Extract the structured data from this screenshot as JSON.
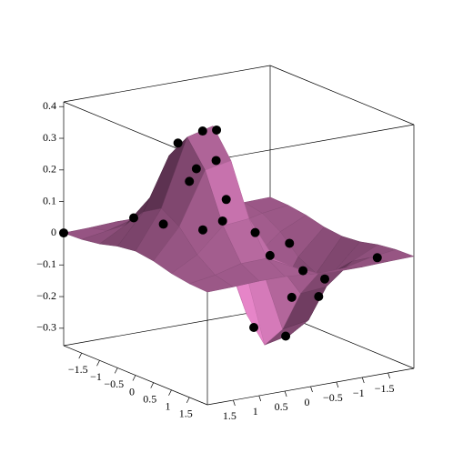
{
  "chart_data": {
    "type": "surface3d",
    "x": [
      -2,
      -1.5,
      -1,
      -0.5,
      0,
      0.5,
      1,
      1.5,
      2
    ],
    "y": [
      -2,
      -1.5,
      -1,
      -0.5,
      0,
      0.5,
      1,
      1.5,
      2
    ],
    "z": [
      [
        -0.001,
        -0.003,
        -0.006,
        -0.006,
        0,
        0.007,
        0.007,
        0.003,
        0.001
      ],
      [
        -0.003,
        -0.014,
        -0.033,
        -0.035,
        0,
        0.041,
        0.039,
        0.017,
        0.004
      ],
      [
        -0.011,
        -0.049,
        -0.115,
        -0.122,
        0,
        0.143,
        0.135,
        0.058,
        0.013
      ],
      [
        -0.025,
        -0.105,
        -0.244,
        -0.258,
        0,
        0.303,
        0.287,
        0.123,
        0.029
      ],
      [
        -0.031,
        -0.134,
        -0.313,
        -0.331,
        0,
        0.389,
        0.368,
        0.158,
        0.037
      ],
      [
        -0.025,
        -0.105,
        -0.244,
        -0.258,
        0,
        0.303,
        0.287,
        0.123,
        0.029
      ],
      [
        -0.011,
        -0.049,
        -0.115,
        -0.122,
        0,
        0.143,
        0.135,
        0.058,
        0.013
      ],
      [
        -0.003,
        -0.014,
        -0.033,
        -0.035,
        0,
        0.041,
        0.039,
        0.017,
        0.004
      ],
      [
        -0.001,
        -0.003,
        -0.006,
        -0.006,
        0,
        0.007,
        0.007,
        0.003,
        0.001
      ]
    ],
    "colors": [
      "#e685c8",
      "#3e1f36"
    ],
    "points": {
      "color": "#000000",
      "x": [
        -2,
        0,
        0.1,
        -0.4,
        0.3,
        -0.8,
        0.9,
        -1.2,
        1.3,
        0.5,
        -0.3,
        0.2,
        -1.6,
        1.7,
        0.6,
        -0.6,
        1.1,
        -1,
        0.4,
        -0.2,
        0.8,
        1.5
      ],
      "y": [
        2,
        0.7,
        0.5,
        0.9,
        -0.7,
        0.4,
        -0.4,
        1.2,
        0.3,
        -1.2,
        -0.5,
        1.6,
        -0.8,
        -1.5,
        0.1,
        -1.4,
        -0.9,
        0,
        1.1,
        0.3,
        0.8,
        -0.2
      ],
      "z": [
        0.001,
        0.379,
        0.381,
        0.328,
        -0.295,
        0.174,
        -0.136,
        0.063,
        0.035,
        -0.175,
        -0.29,
        0.12,
        -0.023,
        -0.005,
        0.069,
        -0.064,
        -0.083,
        0,
        0.29,
        0.265,
        0.203,
        -0.018
      ]
    },
    "xlim": [
      -2,
      2
    ],
    "ylim": [
      -2,
      2
    ],
    "zlim": [
      -0.355,
      0.415
    ],
    "xticks": [
      {
        "value": -1.5,
        "label": "−1.5"
      },
      {
        "value": -1,
        "label": "−1"
      },
      {
        "value": -0.5,
        "label": "−0.5"
      },
      0,
      0.5,
      1,
      1.5
    ],
    "yticks": [
      {
        "value": -1.5,
        "label": "−1.5"
      },
      {
        "value": -1,
        "label": "−1"
      },
      {
        "value": -0.5,
        "label": "−0.5"
      },
      0,
      0.5,
      1,
      1.5
    ],
    "zticks": [
      {
        "value": -0.3,
        "label": "−0.3"
      },
      {
        "value": -0.2,
        "label": "−0.2"
      },
      {
        "value": -0.1,
        "label": "−0.1"
      },
      0,
      0.1,
      0.2,
      0.3,
      0.4
    ]
  }
}
